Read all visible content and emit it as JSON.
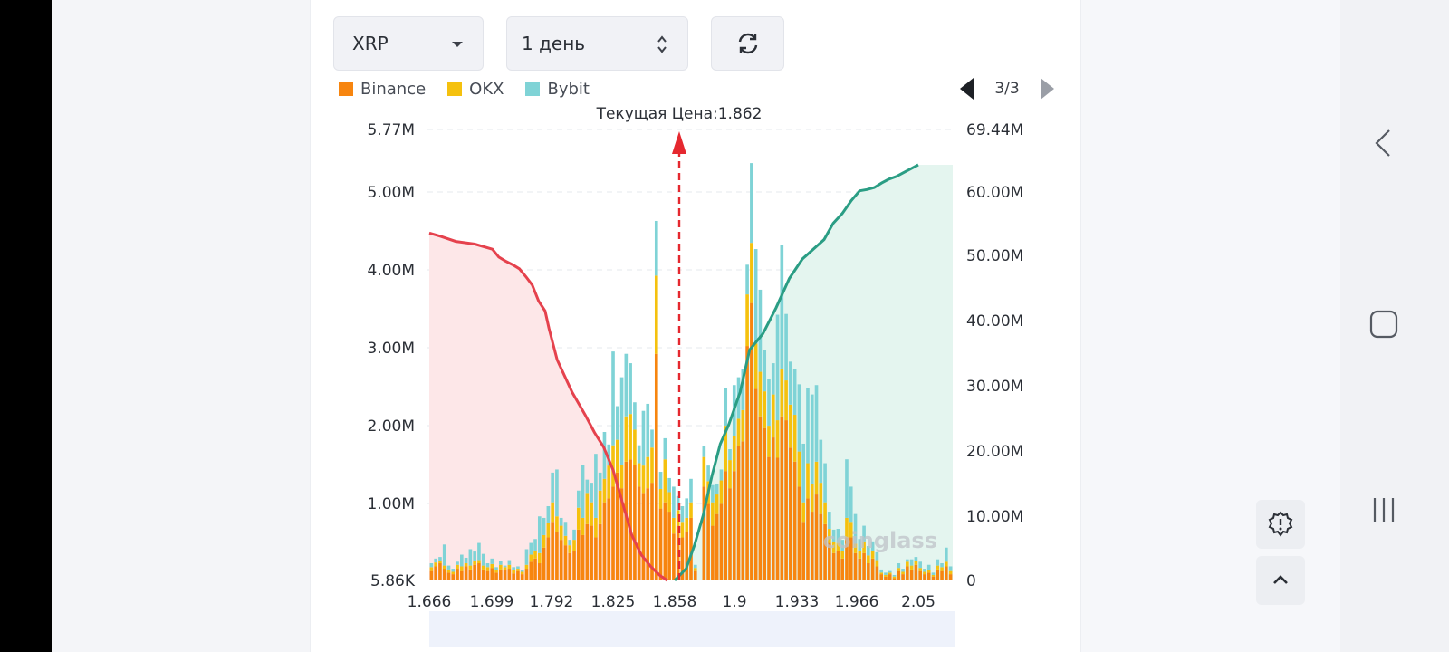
{
  "controls": {
    "coin": "XRP",
    "period": "1 день",
    "refresh_icon": "refresh-icon"
  },
  "legend": {
    "items": [
      {
        "label": "Binance",
        "color": "#f7850f"
      },
      {
        "label": "OKX",
        "color": "#f5c10e"
      },
      {
        "label": "Bybit",
        "color": "#7fd3d6"
      }
    ]
  },
  "pager": {
    "text": "3/3"
  },
  "current_price_label": "Текущая Цена:1.862",
  "watermark": "coinglass",
  "colors": {
    "long_cumulative": "#e5424d",
    "short_cumulative": "#2a9d84",
    "long_fill": "#fde7e8",
    "short_fill": "#e4f5ef",
    "price_marker": "#e5282f",
    "range_bar": "#eef2fb"
  },
  "chart_data": {
    "type": "bar",
    "x_ticks": [
      "1.666",
      "1.699",
      "1.792",
      "1.825",
      "1.858",
      "1.9",
      "1.933",
      "1.966",
      "2.05"
    ],
    "y_left_ticks": [
      "5.86K",
      "1.00M",
      "2.00M",
      "3.00M",
      "4.00M",
      "5.00M",
      "5.77M"
    ],
    "y_right_ticks": [
      "0",
      "10.00M",
      "20.00M",
      "30.00M",
      "40.00M",
      "50.00M",
      "60.00M",
      "69.44M"
    ],
    "y_left_max": 5770000,
    "y_right_max": 69440000,
    "current_price": 1.862,
    "series_names": [
      "Binance",
      "OKX",
      "Bybit"
    ],
    "bars_M": [
      [
        0.12,
        0.05,
        0.05
      ],
      [
        0.18,
        0.05,
        0.05
      ],
      [
        0.22,
        0.03,
        0.05
      ],
      [
        0.15,
        0.04,
        0.27
      ],
      [
        0.1,
        0.04,
        0.05
      ],
      [
        0.08,
        0.03,
        0.04
      ],
      [
        0.15,
        0.05,
        0.04
      ],
      [
        0.12,
        0.06,
        0.15
      ],
      [
        0.18,
        0.04,
        0.07
      ],
      [
        0.14,
        0.05,
        0.21
      ],
      [
        0.2,
        0.05,
        0.12
      ],
      [
        0.22,
        0.04,
        0.22
      ],
      [
        0.14,
        0.05,
        0.15
      ],
      [
        0.12,
        0.05,
        0.05
      ],
      [
        0.16,
        0.05,
        0.07
      ],
      [
        0.1,
        0.03,
        0.04
      ],
      [
        0.14,
        0.06,
        0.05
      ],
      [
        0.13,
        0.04,
        0.02
      ],
      [
        0.15,
        0.05,
        0.06
      ],
      [
        0.09,
        0.04,
        0.04
      ],
      [
        0.12,
        0.03,
        0.03
      ],
      [
        0.08,
        0.03,
        0.02
      ],
      [
        0.15,
        0.05,
        0.2
      ],
      [
        0.24,
        0.09,
        0.15
      ],
      [
        0.28,
        0.1,
        0.15
      ],
      [
        0.22,
        0.13,
        0.47
      ],
      [
        0.42,
        0.16,
        0.22
      ],
      [
        0.55,
        0.18,
        0.22
      ],
      [
        0.75,
        0.25,
        0.38
      ],
      [
        0.62,
        0.2,
        0.6
      ],
      [
        0.52,
        0.18,
        0.1
      ],
      [
        0.45,
        0.12,
        0.18
      ],
      [
        0.35,
        0.1,
        0.07
      ],
      [
        0.38,
        0.14,
        0.13
      ],
      [
        0.65,
        0.28,
        0.22
      ],
      [
        0.58,
        0.22,
        0.68
      ],
      [
        0.72,
        0.4,
        0.17
      ],
      [
        0.7,
        0.3,
        0.25
      ],
      [
        0.55,
        0.25,
        0.82
      ],
      [
        0.72,
        0.43,
        0.23
      ],
      [
        1.0,
        0.3,
        0.6
      ],
      [
        1.05,
        0.42,
        0.27
      ],
      [
        1.2,
        0.53,
        1.2
      ],
      [
        1.38,
        0.42,
        0.43
      ],
      [
        1.18,
        0.3,
        1.12
      ],
      [
        1.52,
        0.58,
        0.8
      ],
      [
        1.55,
        0.58,
        0.65
      ],
      [
        1.48,
        0.45,
        0.35
      ],
      [
        1.2,
        0.3,
        0.23
      ],
      [
        1.12,
        0.35,
        0.7
      ],
      [
        1.18,
        0.4,
        0.68
      ],
      [
        1.25,
        0.45,
        0.23
      ],
      [
        2.9,
        1.0,
        0.7
      ],
      [
        0.92,
        0.25,
        0.22
      ],
      [
        1.0,
        0.55,
        0.27
      ],
      [
        0.88,
        0.25,
        0.18
      ],
      [
        0.6,
        0.2,
        0.4
      ],
      [
        0.7,
        0.2,
        0.18
      ],
      [
        0.55,
        0.2,
        0.2
      ],
      [
        0.62,
        0.18,
        0.25
      ],
      [
        0.8,
        0.2,
        0.3
      ],
      [
        0.12,
        0.04,
        0.04
      ],
      [
        0.0,
        0.0,
        0.0
      ],
      [
        1.2,
        0.38,
        0.14
      ],
      [
        0.98,
        0.29,
        0.2
      ],
      [
        0.7,
        0.3,
        0.22
      ],
      [
        0.85,
        0.25,
        0.14
      ],
      [
        0.98,
        0.3,
        0.14
      ],
      [
        1.4,
        0.58,
        0.48
      ],
      [
        1.18,
        0.36,
        0.14
      ],
      [
        1.4,
        0.45,
        0.65
      ],
      [
        1.72,
        0.35,
        0.53
      ],
      [
        1.78,
        0.4,
        0.52
      ],
      [
        3.0,
        0.66,
        0.38
      ],
      [
        3.55,
        0.77,
        1.02
      ],
      [
        2.45,
        0.58,
        1.21
      ],
      [
        2.1,
        0.57,
        1.05
      ],
      [
        1.95,
        0.47,
        0.53
      ],
      [
        1.58,
        0.4,
        0.6
      ],
      [
        1.83,
        0.55,
        0.4
      ],
      [
        1.57,
        0.48,
        1.35
      ],
      [
        2.1,
        0.6,
        1.59
      ],
      [
        2.05,
        0.51,
        0.85
      ],
      [
        1.7,
        0.55,
        0.55
      ],
      [
        1.52,
        0.6,
        0.58
      ],
      [
        1.2,
        0.45,
        0.86
      ],
      [
        0.75,
        0.25,
        0.75
      ],
      [
        1.05,
        0.45,
        0.96
      ],
      [
        0.88,
        0.35,
        1.15
      ],
      [
        1.1,
        0.42,
        0.98
      ],
      [
        0.85,
        0.4,
        0.55
      ],
      [
        0.72,
        0.28,
        0.5
      ],
      [
        0.48,
        0.18,
        0.22
      ],
      [
        0.35,
        0.14,
        0.16
      ],
      [
        0.38,
        0.1,
        0.18
      ],
      [
        0.28,
        0.1,
        0.14
      ],
      [
        0.55,
        0.25,
        0.75
      ],
      [
        0.55,
        0.2,
        0.45
      ],
      [
        0.35,
        0.12,
        0.38
      ],
      [
        0.28,
        0.1,
        0.15
      ],
      [
        0.35,
        0.15,
        0.2
      ],
      [
        0.22,
        0.1,
        0.12
      ],
      [
        0.28,
        0.1,
        0.12
      ],
      [
        0.18,
        0.08,
        0.1
      ],
      [
        0.08,
        0.02,
        0.04
      ],
      [
        0.05,
        0.02,
        0.03
      ],
      [
        0.08,
        0.02,
        0.02
      ],
      [
        0.03,
        0.02,
        0.02
      ],
      [
        0.12,
        0.04,
        0.06
      ],
      [
        0.08,
        0.03,
        0.04
      ],
      [
        0.18,
        0.06,
        0.03
      ],
      [
        0.14,
        0.05,
        0.08
      ],
      [
        0.2,
        0.05,
        0.05
      ],
      [
        0.12,
        0.04,
        0.08
      ],
      [
        0.08,
        0.03,
        0.04
      ],
      [
        0.1,
        0.03,
        0.07
      ],
      [
        0.05,
        0.02,
        0.03
      ],
      [
        0.14,
        0.05,
        0.08
      ],
      [
        0.12,
        0.05,
        0.05
      ],
      [
        0.18,
        0.06,
        0.18
      ],
      [
        0.08,
        0.04,
        0.06
      ]
    ],
    "long_cumulative_M": [
      [
        1.666,
        53.5
      ],
      [
        1.672,
        53.0
      ],
      [
        1.68,
        52.2
      ],
      [
        1.69,
        51.8
      ],
      [
        1.7,
        51.0
      ],
      [
        1.71,
        49.8
      ],
      [
        1.72,
        49.2
      ],
      [
        1.732,
        48.6
      ],
      [
        1.742,
        48.0
      ],
      [
        1.752,
        46.8
      ],
      [
        1.762,
        45.5
      ],
      [
        1.772,
        43.0
      ],
      [
        1.782,
        41.5
      ],
      [
        1.788,
        38.8
      ],
      [
        1.795,
        34.0
      ],
      [
        1.803,
        29.0
      ],
      [
        1.81,
        25.5
      ],
      [
        1.815,
        22.8
      ],
      [
        1.82,
        20.5
      ],
      [
        1.825,
        17.0
      ],
      [
        1.83,
        12.0
      ],
      [
        1.835,
        7.0
      ],
      [
        1.84,
        4.0
      ],
      [
        1.845,
        2.2
      ],
      [
        1.85,
        0.8
      ],
      [
        1.854,
        0.0
      ]
    ],
    "short_cumulative_M": [
      [
        1.858,
        0.0
      ],
      [
        1.866,
        1.8
      ],
      [
        1.872,
        5.5
      ],
      [
        1.878,
        10.0
      ],
      [
        1.884,
        16.0
      ],
      [
        1.89,
        21.0
      ],
      [
        1.896,
        24.0
      ],
      [
        1.903,
        29.0
      ],
      [
        1.908,
        35.5
      ],
      [
        1.915,
        38.0
      ],
      [
        1.922,
        42.0
      ],
      [
        1.929,
        46.5
      ],
      [
        1.936,
        49.5
      ],
      [
        1.942,
        51.0
      ],
      [
        1.948,
        52.5
      ],
      [
        1.953,
        55.0
      ],
      [
        1.958,
        56.5
      ],
      [
        1.963,
        58.5
      ],
      [
        1.97,
        60.0
      ],
      [
        1.98,
        60.2
      ],
      [
        1.99,
        60.5
      ],
      [
        2.0,
        61.2
      ],
      [
        2.01,
        61.8
      ],
      [
        2.02,
        62.2
      ],
      [
        2.03,
        62.8
      ],
      [
        2.04,
        63.4
      ],
      [
        2.05,
        64.0
      ]
    ]
  }
}
